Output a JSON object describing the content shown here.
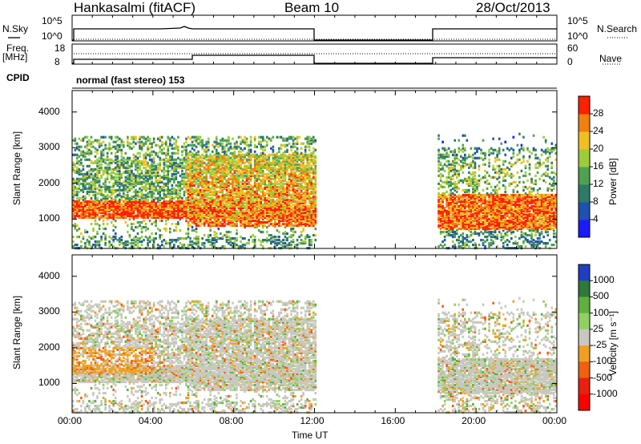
{
  "header": {
    "station": "Hankasalmi (fitACF)",
    "beam": "Beam 10",
    "date": "28/Oct/2013"
  },
  "side_labels": {
    "nsky": "N.Sky",
    "nsearch": "N.Search",
    "freq": "Freq.",
    "freq_unit": "[MHz]",
    "nave": "Nave",
    "cpid": "CPID"
  },
  "top_panels": {
    "nsky_ticks_left": [
      "10^5",
      "10^0"
    ],
    "nsky_ticks_right": [
      "10^5",
      "10^0"
    ],
    "freq_ticks_left": [
      "18",
      "8"
    ],
    "freq_ticks_right": [
      "60",
      "0"
    ],
    "cpid_text": "normal (fast stereo) 153"
  },
  "chart_data": [
    {
      "type": "heatmap",
      "name": "power",
      "xlabel": "Time UT",
      "ylabel": "Slant Range [km]",
      "x_ticks": [
        "00:00",
        "04:00",
        "08:00",
        "12:00",
        "16:00",
        "20:00",
        "00:00"
      ],
      "y_ticks": [
        "1000",
        "2000",
        "3000",
        "4000"
      ],
      "xlim_hours": [
        0,
        24
      ],
      "ylim_km": [
        180,
        4600
      ],
      "data_gap_ut": [
        [
          "12:00",
          "18:00"
        ]
      ],
      "colorbar": {
        "label": "Power [dB]",
        "ticks": [
          "4",
          "8",
          "12",
          "16",
          "20",
          "24",
          "28"
        ],
        "colors": [
          "#1a1aff",
          "#2050b0",
          "#2d7a6a",
          "#50a050",
          "#9ccc3a",
          "#f0c020",
          "#f08010",
          "#ff2000"
        ]
      }
    },
    {
      "type": "heatmap",
      "name": "velocity",
      "xlabel": "Time UT",
      "ylabel": "Slant Range [km]",
      "x_ticks": [
        "00:00",
        "04:00",
        "08:00",
        "12:00",
        "16:00",
        "20:00",
        "00:00"
      ],
      "y_ticks": [
        "1000",
        "2000",
        "3000",
        "4000"
      ],
      "xlim_hours": [
        0,
        24
      ],
      "ylim_km": [
        180,
        4600
      ],
      "data_gap_ut": [
        [
          "12:00",
          "18:00"
        ]
      ],
      "colorbar": {
        "label": "Velocity [m s⁻¹]",
        "ticks": [
          "1000",
          "500",
          "100",
          "25",
          "-25",
          "-100",
          "-500",
          "-1000"
        ],
        "colors": [
          "#1f3fc0",
          "#2e7a3a",
          "#60b040",
          "#90d060",
          "#c8c8c0",
          "#f0a020",
          "#f06010",
          "#e82010",
          "#ff0000"
        ]
      }
    }
  ]
}
